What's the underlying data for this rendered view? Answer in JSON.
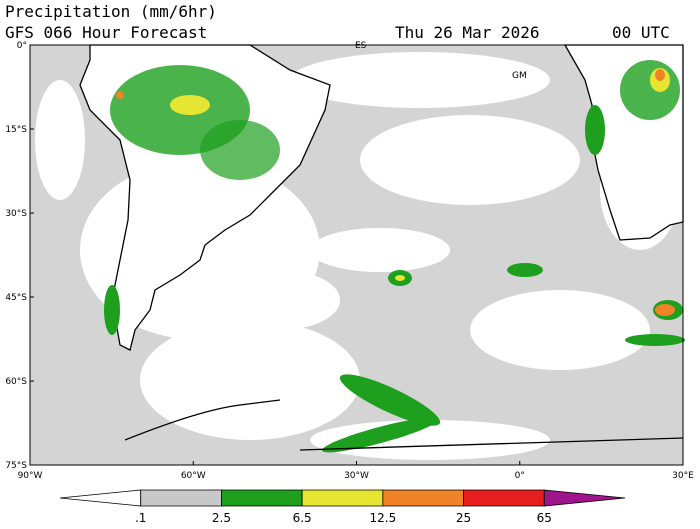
{
  "header": {
    "title": "Precipitation (mm/6hr)",
    "model": "GFS 066 Hour Forecast",
    "date": "Thu 26 Mar 2026",
    "time": "00 UTC"
  },
  "map": {
    "lat_labels": [
      "0°",
      "15°S",
      "30°S",
      "45°S",
      "60°S",
      "75°S"
    ],
    "lon_labels": [
      "90°W",
      "60°W",
      "30°W",
      "0°",
      "30°E"
    ],
    "place_labels": [
      "ES",
      "GM"
    ]
  },
  "colorbar": {
    "labels": [
      ".1",
      "2.5",
      "6.5",
      "12.5",
      "25",
      "65"
    ],
    "colors": [
      "#ffffff",
      "#c8c8c8",
      "#1ea01e",
      "#e6e632",
      "#f08228",
      "#e61e1e",
      "#a0148c"
    ]
  }
}
